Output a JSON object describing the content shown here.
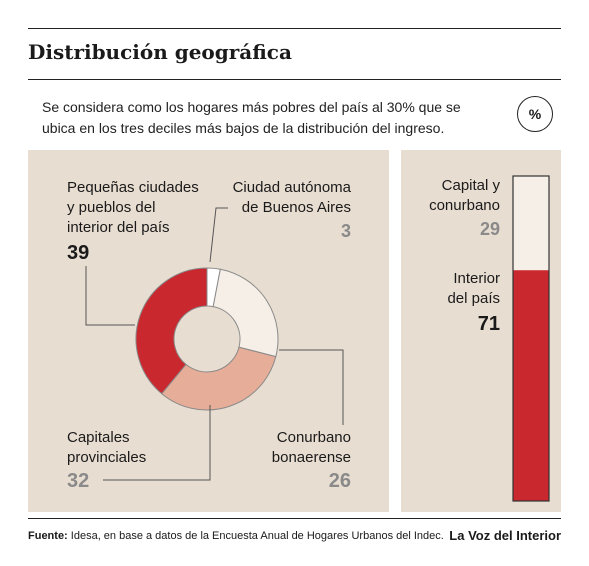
{
  "title": "Distribución geográfica",
  "subtitle": "Se considera como los hogares más pobres del país al 30% que se ubica en los tres deciles más bajos de la distribución del ingreso.",
  "unit_badge": "%",
  "chart_data": [
    {
      "type": "pie",
      "style": "donut",
      "series": [
        {
          "name": "Ciudad autónoma de Buenos Aires",
          "value": 3,
          "color": "#ffffff"
        },
        {
          "name": "Conurbano bonaerense",
          "value": 26,
          "color": "#f5efe8"
        },
        {
          "name": "Capitales provinciales",
          "value": 32,
          "color": "#e6ad98"
        },
        {
          "name": "Pequeñas ciudades y pueblos del interior del país",
          "value": 39,
          "color": "#c8282e"
        }
      ],
      "labels": {
        "caba_line1": "Ciudad autónoma",
        "caba_line2": "de Buenos Aires",
        "caba_value": "3",
        "conurbano_line1": "Conurbano",
        "conurbano_line2": "bonaerense",
        "conurbano_value": "26",
        "capitales_line1": "Capitales",
        "capitales_line2": "provinciales",
        "capitales_value": "32",
        "pequenas_line1": "Pequeñas ciudades",
        "pequenas_line2": "y pueblos del",
        "pequenas_line3": "interior del país",
        "pequenas_value": "39"
      }
    },
    {
      "type": "bar",
      "style": "stacked-vertical",
      "categories": [
        "Capital y conurbano",
        "Interior del país"
      ],
      "values": [
        29,
        71
      ],
      "colors": [
        "#f5efe8",
        "#c8282e"
      ],
      "labels": {
        "capital_line1": "Capital y",
        "capital_line2": "conurbano",
        "capital_value": "29",
        "interior_line1": "Interior",
        "interior_line2": "del país",
        "interior_value": "71"
      }
    }
  ],
  "footer": {
    "source_label": "Fuente:",
    "source_text": " Idesa, en base a datos de la Encuesta Anual de Hogares Urbanos del Indec.",
    "brand": "La Voz del Interior"
  }
}
